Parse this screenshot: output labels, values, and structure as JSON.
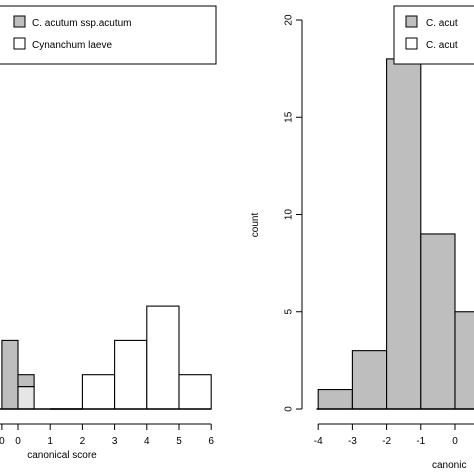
{
  "chart_data": [
    {
      "type": "bar",
      "subtype": "histogram",
      "xlabel": "canonical score",
      "ylabel": "",
      "x_ticks": [
        "0",
        "0",
        "1",
        "2",
        "3",
        "4",
        "5",
        "6"
      ],
      "y_ticks": [],
      "legend": {
        "placement": "top-left",
        "items": [
          {
            "label": "C. acutum ssp.acutum",
            "color": "#bebebe"
          },
          {
            "label": "Cynanchum laeve",
            "color": "#ffffff"
          }
        ]
      },
      "bins": [
        {
          "from": -0.5,
          "to": 0.0,
          "gray": 2.0,
          "white": 0
        },
        {
          "from": 0.0,
          "to": 0.5,
          "gray": 0.35,
          "white": 0.65
        },
        {
          "from": 2.0,
          "to": 3.0,
          "gray": 0,
          "white": 1.0
        },
        {
          "from": 3.0,
          "to": 4.0,
          "gray": 0,
          "white": 2.0
        },
        {
          "from": 4.0,
          "to": 5.0,
          "gray": 0,
          "white": 3.0
        },
        {
          "from": 5.0,
          "to": 6.0,
          "gray": 0,
          "white": 1.0
        }
      ],
      "xlim": [
        -0.8,
        6
      ],
      "ylim": [
        0,
        7
      ],
      "colors": {
        "gray": "#bebebe",
        "white": "#ffffff",
        "line": "#000000",
        "partial_white": "#e6e6e6"
      }
    },
    {
      "type": "bar",
      "subtype": "histogram",
      "xlabel": "canonic",
      "ylabel": "count",
      "x_ticks": [
        -4,
        -3,
        -2,
        -1,
        0
      ],
      "y_ticks": [
        0,
        5,
        10,
        15,
        20
      ],
      "legend": {
        "placement": "top-right",
        "items": [
          {
            "label": "C. acut",
            "color": "#bebebe"
          },
          {
            "label": "C. acut",
            "color": "#ffffff"
          }
        ]
      },
      "bins": [
        {
          "from": -4,
          "to": -3,
          "value": 1
        },
        {
          "from": -3,
          "to": -2,
          "value": 3
        },
        {
          "from": -2,
          "to": -1,
          "value": 18
        },
        {
          "from": -1,
          "to": 0,
          "value": 9
        },
        {
          "from": 0,
          "to": 1,
          "value": 5
        }
      ],
      "xlim": [
        -4.1,
        1.0
      ],
      "ylim": [
        0,
        20
      ]
    }
  ]
}
